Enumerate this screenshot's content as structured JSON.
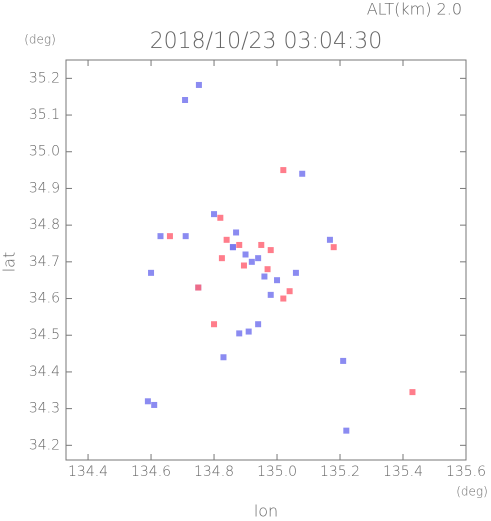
{
  "chart_data": {
    "type": "scatter",
    "title": "2018/10/23 03:04:30",
    "subtitle": "ALT(km) 2.0",
    "y_unit": "(deg)",
    "x_unit": "(deg)",
    "x_label": "lon",
    "y_label": "lat",
    "xlim": [
      134.33,
      135.6
    ],
    "ylim": [
      34.16,
      35.25
    ],
    "xticks": [
      134.4,
      134.6,
      134.8,
      {
        "value": 135.0,
        "label": "135.0"
      },
      135.2,
      135.4,
      135.6
    ],
    "yticks": [
      34.2,
      34.3,
      34.4,
      34.5,
      34.6,
      34.7,
      34.8,
      34.9,
      {
        "value": 35.0,
        "label": "35.0"
      },
      35.1,
      35.2
    ],
    "series": [
      {
        "color": "#7777ee",
        "x": [
          134.708,
          134.752,
          135.08,
          135.168,
          134.63,
          134.71,
          134.86,
          134.92,
          134.94,
          135.0,
          135.06,
          134.98,
          134.91,
          134.94,
          134.88,
          134.61,
          134.59,
          134.87,
          134.75,
          134.83,
          134.86,
          135.22,
          135.21,
          134.6,
          134.8,
          134.9,
          134.96
        ],
        "y": [
          35.141,
          35.182,
          34.94,
          34.76,
          34.77,
          34.77,
          34.74,
          34.7,
          34.71,
          34.65,
          34.67,
          34.61,
          34.51,
          34.53,
          34.505,
          34.31,
          34.32,
          34.78,
          34.63,
          34.44,
          34.74,
          34.24,
          34.43,
          34.67,
          34.83,
          34.72,
          34.66
        ]
      },
      {
        "color": "#ff6677",
        "x": [
          135.02,
          135.18,
          134.88,
          134.825,
          134.95,
          134.98,
          134.895,
          134.97,
          135.02,
          135.04,
          134.82,
          134.84,
          134.66,
          134.8,
          135.43,
          134.75
        ],
        "y": [
          34.95,
          34.74,
          34.746,
          34.71,
          34.746,
          34.732,
          34.69,
          34.68,
          34.6,
          34.62,
          34.82,
          34.76,
          34.77,
          34.53,
          34.345,
          34.63
        ]
      }
    ]
  }
}
